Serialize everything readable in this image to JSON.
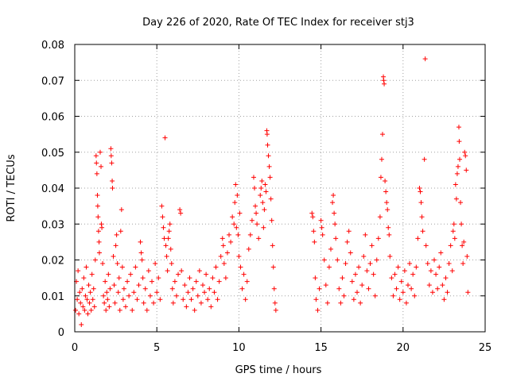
{
  "chart_data": {
    "type": "scatter",
    "title": "Day 226 of 2020, Rate Of TEC Index for receiver stj3",
    "xlabel": "GPS time / hours",
    "ylabel": "ROTI / TECUs",
    "xlim": [
      0,
      25
    ],
    "ylim": [
      0,
      0.08
    ],
    "xticks": [
      0,
      5,
      10,
      15,
      20,
      25
    ],
    "xtick_labels": [
      "0",
      "5",
      "10",
      "15",
      "20",
      "25"
    ],
    "yticks": [
      0,
      0.01,
      0.02,
      0.03,
      0.04,
      0.05,
      0.06,
      0.07,
      0.08
    ],
    "ytick_labels": [
      "0",
      "0.01",
      "0.02",
      "0.03",
      "0.04",
      "0.05",
      "0.06",
      "0.07",
      "0.08"
    ],
    "grid": true,
    "marker": "+",
    "color": "#ff0000",
    "data_gaps_hours": [
      [
        12.3,
        14.4
      ]
    ],
    "series": [
      {
        "name": "ROTI",
        "points": [
          [
            0.05,
            0.006
          ],
          [
            0.1,
            0.014
          ],
          [
            0.15,
            0.009
          ],
          [
            0.2,
            0.017
          ],
          [
            0.25,
            0.005
          ],
          [
            0.3,
            0.011
          ],
          [
            0.35,
            0.008
          ],
          [
            0.4,
            0.002
          ],
          [
            0.45,
            0.012
          ],
          [
            0.5,
            0.007
          ],
          [
            0.55,
            0.015
          ],
          [
            0.6,
            0.006
          ],
          [
            0.65,
            0.01
          ],
          [
            0.7,
            0.018
          ],
          [
            0.75,
            0.009
          ],
          [
            0.8,
            0.005
          ],
          [
            0.85,
            0.013
          ],
          [
            0.9,
            0.008
          ],
          [
            0.95,
            0.011
          ],
          [
            1.0,
            0.006
          ],
          [
            1.05,
            0.016
          ],
          [
            1.1,
            0.009
          ],
          [
            1.15,
            0.012
          ],
          [
            1.2,
            0.007
          ],
          [
            1.25,
            0.02
          ],
          [
            1.3,
            0.049
          ],
          [
            1.32,
            0.047
          ],
          [
            1.35,
            0.044
          ],
          [
            1.38,
            0.038
          ],
          [
            1.4,
            0.035
          ],
          [
            1.42,
            0.032
          ],
          [
            1.45,
            0.028
          ],
          [
            1.48,
            0.025
          ],
          [
            1.5,
            0.022
          ],
          [
            1.55,
            0.05
          ],
          [
            1.6,
            0.046
          ],
          [
            1.62,
            0.03
          ],
          [
            1.65,
            0.029
          ],
          [
            1.7,
            0.019
          ],
          [
            1.75,
            0.01
          ],
          [
            1.8,
            0.008
          ],
          [
            1.85,
            0.014
          ],
          [
            1.9,
            0.006
          ],
          [
            1.95,
            0.011
          ],
          [
            2.0,
            0.009
          ],
          [
            2.05,
            0.016
          ],
          [
            2.1,
            0.007
          ],
          [
            2.15,
            0.012
          ],
          [
            2.2,
            0.051
          ],
          [
            2.22,
            0.049
          ],
          [
            2.25,
            0.047
          ],
          [
            2.28,
            0.042
          ],
          [
            2.3,
            0.04
          ],
          [
            2.35,
            0.021
          ],
          [
            2.4,
            0.013
          ],
          [
            2.45,
            0.008
          ],
          [
            2.5,
            0.024
          ],
          [
            2.55,
            0.027
          ],
          [
            2.6,
            0.019
          ],
          [
            2.65,
            0.011
          ],
          [
            2.7,
            0.015
          ],
          [
            2.75,
            0.006
          ],
          [
            2.8,
            0.028
          ],
          [
            2.85,
            0.034
          ],
          [
            2.9,
            0.018
          ],
          [
            2.95,
            0.009
          ],
          [
            3.0,
            0.012
          ],
          [
            3.1,
            0.007
          ],
          [
            3.2,
            0.014
          ],
          [
            3.3,
            0.01
          ],
          [
            3.4,
            0.016
          ],
          [
            3.5,
            0.006
          ],
          [
            3.6,
            0.011
          ],
          [
            3.7,
            0.018
          ],
          [
            3.8,
            0.009
          ],
          [
            3.9,
            0.013
          ],
          [
            4.0,
            0.025
          ],
          [
            4.05,
            0.022
          ],
          [
            4.1,
            0.02
          ],
          [
            4.15,
            0.015
          ],
          [
            4.2,
            0.008
          ],
          [
            4.3,
            0.012
          ],
          [
            4.4,
            0.006
          ],
          [
            4.5,
            0.017
          ],
          [
            4.6,
            0.01
          ],
          [
            4.7,
            0.014
          ],
          [
            4.8,
            0.008
          ],
          [
            4.9,
            0.019
          ],
          [
            5.0,
            0.011
          ],
          [
            5.1,
            0.015
          ],
          [
            5.2,
            0.009
          ],
          [
            5.3,
            0.035
          ],
          [
            5.35,
            0.032
          ],
          [
            5.4,
            0.029
          ],
          [
            5.45,
            0.026
          ],
          [
            5.5,
            0.054
          ],
          [
            5.55,
            0.024
          ],
          [
            5.6,
            0.021
          ],
          [
            5.65,
            0.017
          ],
          [
            5.7,
            0.026
          ],
          [
            5.75,
            0.028
          ],
          [
            5.8,
            0.03
          ],
          [
            5.85,
            0.023
          ],
          [
            5.9,
            0.019
          ],
          [
            5.95,
            0.012
          ],
          [
            6.0,
            0.008
          ],
          [
            6.1,
            0.014
          ],
          [
            6.2,
            0.01
          ],
          [
            6.3,
            0.016
          ],
          [
            6.4,
            0.034
          ],
          [
            6.45,
            0.033
          ],
          [
            6.5,
            0.017
          ],
          [
            6.6,
            0.009
          ],
          [
            6.7,
            0.013
          ],
          [
            6.8,
            0.007
          ],
          [
            6.9,
            0.011
          ],
          [
            7.0,
            0.015
          ],
          [
            7.1,
            0.009
          ],
          [
            7.2,
            0.012
          ],
          [
            7.3,
            0.006
          ],
          [
            7.4,
            0.014
          ],
          [
            7.5,
            0.01
          ],
          [
            7.6,
            0.017
          ],
          [
            7.7,
            0.008
          ],
          [
            7.8,
            0.013
          ],
          [
            7.9,
            0.011
          ],
          [
            8.0,
            0.016
          ],
          [
            8.1,
            0.009
          ],
          [
            8.2,
            0.012
          ],
          [
            8.3,
            0.007
          ],
          [
            8.4,
            0.015
          ],
          [
            8.5,
            0.011
          ],
          [
            8.6,
            0.018
          ],
          [
            8.7,
            0.009
          ],
          [
            8.8,
            0.014
          ],
          [
            8.9,
            0.021
          ],
          [
            9.0,
            0.026
          ],
          [
            9.05,
            0.024
          ],
          [
            9.1,
            0.019
          ],
          [
            9.2,
            0.015
          ],
          [
            9.3,
            0.022
          ],
          [
            9.4,
            0.027
          ],
          [
            9.5,
            0.025
          ],
          [
            9.6,
            0.032
          ],
          [
            9.7,
            0.03
          ],
          [
            9.75,
            0.036
          ],
          [
            9.8,
            0.041
          ],
          [
            9.85,
            0.029
          ],
          [
            9.9,
            0.038
          ],
          [
            9.95,
            0.027
          ],
          [
            10.0,
            0.021
          ],
          [
            10.05,
            0.033
          ],
          [
            10.1,
            0.018
          ],
          [
            10.2,
            0.012
          ],
          [
            10.3,
            0.016
          ],
          [
            10.4,
            0.009
          ],
          [
            10.5,
            0.014
          ],
          [
            10.6,
            0.023
          ],
          [
            10.7,
            0.027
          ],
          [
            10.8,
            0.031
          ],
          [
            10.9,
            0.043
          ],
          [
            10.95,
            0.04
          ],
          [
            11.0,
            0.035
          ],
          [
            11.05,
            0.033
          ],
          [
            11.1,
            0.03
          ],
          [
            11.2,
            0.026
          ],
          [
            11.3,
            0.038
          ],
          [
            11.35,
            0.04
          ],
          [
            11.4,
            0.042
          ],
          [
            11.45,
            0.036
          ],
          [
            11.5,
            0.029
          ],
          [
            11.55,
            0.034
          ],
          [
            11.6,
            0.041
          ],
          [
            11.65,
            0.039
          ],
          [
            11.7,
            0.056
          ],
          [
            11.72,
            0.055
          ],
          [
            11.75,
            0.052
          ],
          [
            11.8,
            0.049
          ],
          [
            11.85,
            0.046
          ],
          [
            11.9,
            0.043
          ],
          [
            11.95,
            0.037
          ],
          [
            12.0,
            0.031
          ],
          [
            12.05,
            0.024
          ],
          [
            12.1,
            0.018
          ],
          [
            12.15,
            0.012
          ],
          [
            12.2,
            0.008
          ],
          [
            12.25,
            0.006
          ],
          [
            14.45,
            0.033
          ],
          [
            14.5,
            0.032
          ],
          [
            14.55,
            0.028
          ],
          [
            14.6,
            0.025
          ],
          [
            14.65,
            0.015
          ],
          [
            14.7,
            0.009
          ],
          [
            14.8,
            0.006
          ],
          [
            14.9,
            0.012
          ],
          [
            15.0,
            0.031
          ],
          [
            15.05,
            0.029
          ],
          [
            15.1,
            0.027
          ],
          [
            15.2,
            0.02
          ],
          [
            15.3,
            0.013
          ],
          [
            15.4,
            0.008
          ],
          [
            15.5,
            0.018
          ],
          [
            15.6,
            0.023
          ],
          [
            15.7,
            0.036
          ],
          [
            15.75,
            0.038
          ],
          [
            15.8,
            0.033
          ],
          [
            15.85,
            0.03
          ],
          [
            15.9,
            0.026
          ],
          [
            16.0,
            0.02
          ],
          [
            16.1,
            0.012
          ],
          [
            16.2,
            0.008
          ],
          [
            16.3,
            0.015
          ],
          [
            16.4,
            0.01
          ],
          [
            16.5,
            0.019
          ],
          [
            16.6,
            0.025
          ],
          [
            16.7,
            0.028
          ],
          [
            16.8,
            0.022
          ],
          [
            16.9,
            0.014
          ],
          [
            17.0,
            0.009
          ],
          [
            17.1,
            0.016
          ],
          [
            17.2,
            0.011
          ],
          [
            17.3,
            0.018
          ],
          [
            17.4,
            0.008
          ],
          [
            17.5,
            0.013
          ],
          [
            17.6,
            0.021
          ],
          [
            17.7,
            0.027
          ],
          [
            17.8,
            0.017
          ],
          [
            17.9,
            0.012
          ],
          [
            18.0,
            0.019
          ],
          [
            18.1,
            0.024
          ],
          [
            18.2,
            0.016
          ],
          [
            18.3,
            0.01
          ],
          [
            18.4,
            0.02
          ],
          [
            18.5,
            0.026
          ],
          [
            18.6,
            0.032
          ],
          [
            18.65,
            0.043
          ],
          [
            18.7,
            0.048
          ],
          [
            18.75,
            0.055
          ],
          [
            18.8,
            0.071
          ],
          [
            18.82,
            0.07
          ],
          [
            18.85,
            0.069
          ],
          [
            18.9,
            0.042
          ],
          [
            18.95,
            0.039
          ],
          [
            19.0,
            0.036
          ],
          [
            19.05,
            0.034
          ],
          [
            19.1,
            0.029
          ],
          [
            19.15,
            0.027
          ],
          [
            19.2,
            0.021
          ],
          [
            19.3,
            0.015
          ],
          [
            19.4,
            0.01
          ],
          [
            19.5,
            0.016
          ],
          [
            19.6,
            0.012
          ],
          [
            19.7,
            0.018
          ],
          [
            19.8,
            0.009
          ],
          [
            19.9,
            0.014
          ],
          [
            20.0,
            0.011
          ],
          [
            20.1,
            0.017
          ],
          [
            20.2,
            0.008
          ],
          [
            20.3,
            0.013
          ],
          [
            20.4,
            0.019
          ],
          [
            20.5,
            0.012
          ],
          [
            20.6,
            0.016
          ],
          [
            20.7,
            0.01
          ],
          [
            20.8,
            0.018
          ],
          [
            20.9,
            0.026
          ],
          [
            21.0,
            0.04
          ],
          [
            21.05,
            0.039
          ],
          [
            21.1,
            0.036
          ],
          [
            21.15,
            0.032
          ],
          [
            21.2,
            0.028
          ],
          [
            21.3,
            0.048
          ],
          [
            21.35,
            0.076
          ],
          [
            21.4,
            0.024
          ],
          [
            21.5,
            0.019
          ],
          [
            21.6,
            0.013
          ],
          [
            21.7,
            0.017
          ],
          [
            21.8,
            0.011
          ],
          [
            21.9,
            0.02
          ],
          [
            22.0,
            0.016
          ],
          [
            22.1,
            0.012
          ],
          [
            22.2,
            0.018
          ],
          [
            22.3,
            0.022
          ],
          [
            22.4,
            0.013
          ],
          [
            22.5,
            0.009
          ],
          [
            22.6,
            0.015
          ],
          [
            22.7,
            0.011
          ],
          [
            22.8,
            0.019
          ],
          [
            22.9,
            0.024
          ],
          [
            23.0,
            0.017
          ],
          [
            23.05,
            0.028
          ],
          [
            23.1,
            0.03
          ],
          [
            23.15,
            0.026
          ],
          [
            23.2,
            0.041
          ],
          [
            23.25,
            0.037
          ],
          [
            23.3,
            0.044
          ],
          [
            23.35,
            0.046
          ],
          [
            23.4,
            0.057
          ],
          [
            23.42,
            0.053
          ],
          [
            23.45,
            0.048
          ],
          [
            23.5,
            0.036
          ],
          [
            23.55,
            0.03
          ],
          [
            23.6,
            0.024
          ],
          [
            23.65,
            0.019
          ],
          [
            23.7,
            0.025
          ],
          [
            23.75,
            0.05
          ],
          [
            23.8,
            0.049
          ],
          [
            23.85,
            0.045
          ],
          [
            23.9,
            0.021
          ],
          [
            23.95,
            0.011
          ]
        ]
      }
    ]
  }
}
